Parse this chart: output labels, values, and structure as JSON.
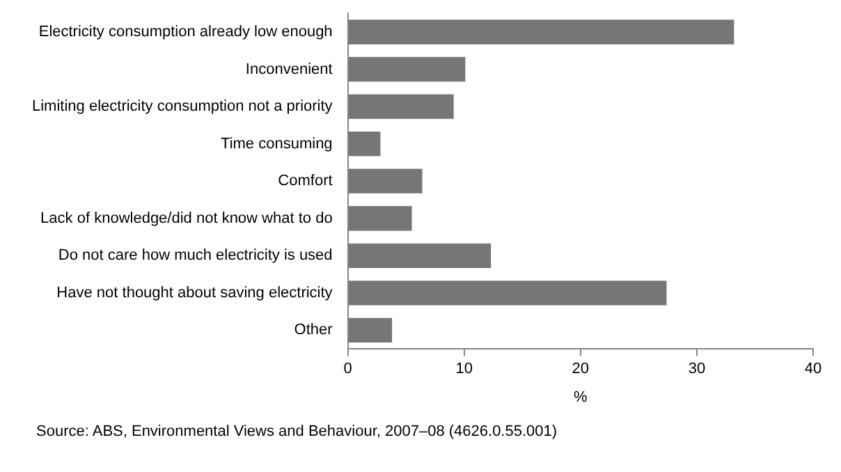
{
  "chart_data": {
    "type": "bar",
    "orientation": "horizontal",
    "categories": [
      "Electricity consumption already low enough",
      "Inconvenient",
      "Limiting electricity consumption not a priority",
      "Time consuming",
      "Comfort",
      "Lack of knowledge/did not know what to do",
      "Do not care how much electricity is used",
      "Have not thought about saving electricity",
      "Other"
    ],
    "values": [
      33.2,
      10.1,
      9.1,
      2.8,
      6.4,
      5.5,
      12.3,
      27.4,
      3.8
    ],
    "color": "#767676",
    "xlim": [
      0,
      40
    ],
    "xticks": [
      0,
      10,
      20,
      30,
      40
    ],
    "xlabel": "%",
    "grid": false,
    "legend": false,
    "annotations": [
      "Source: ABS, Environmental Views and Behaviour, 2007–08 (4626.0.55.001)"
    ]
  }
}
